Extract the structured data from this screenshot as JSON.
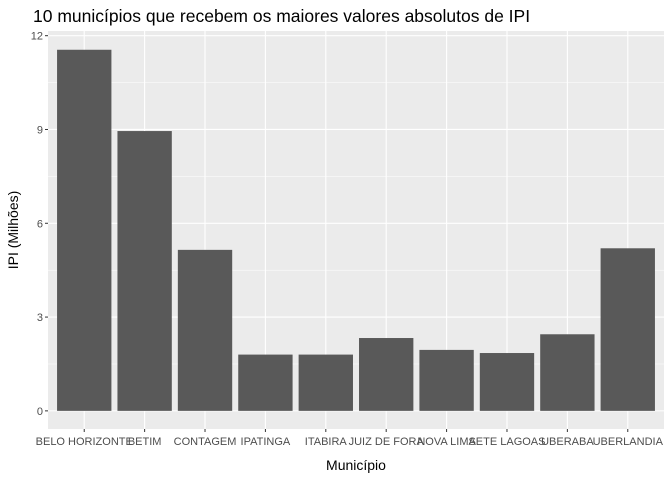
{
  "chart_data": {
    "type": "bar",
    "title": "10 municípios que recebem os maiores valores absolutos de IPI",
    "xlabel": "Município",
    "ylabel": "IPI (Milhões)",
    "categories": [
      "BELO HORIZONTE",
      "BETIM",
      "CONTAGEM",
      "IPATINGA",
      "ITABIRA",
      "JUIZ DE FORA",
      "NOVA LIMA",
      "SETE LAGOAS",
      "UBERABA",
      "UBERLANDIA"
    ],
    "values": [
      11.55,
      8.95,
      5.15,
      1.8,
      1.8,
      2.33,
      1.95,
      1.85,
      2.45,
      5.2
    ],
    "yticks": [
      0,
      3,
      6,
      9,
      12
    ],
    "ylim": [
      -0.58,
      12.15
    ],
    "grid": true,
    "colors": {
      "bar": "#595959",
      "panel": "#ebebeb"
    }
  }
}
